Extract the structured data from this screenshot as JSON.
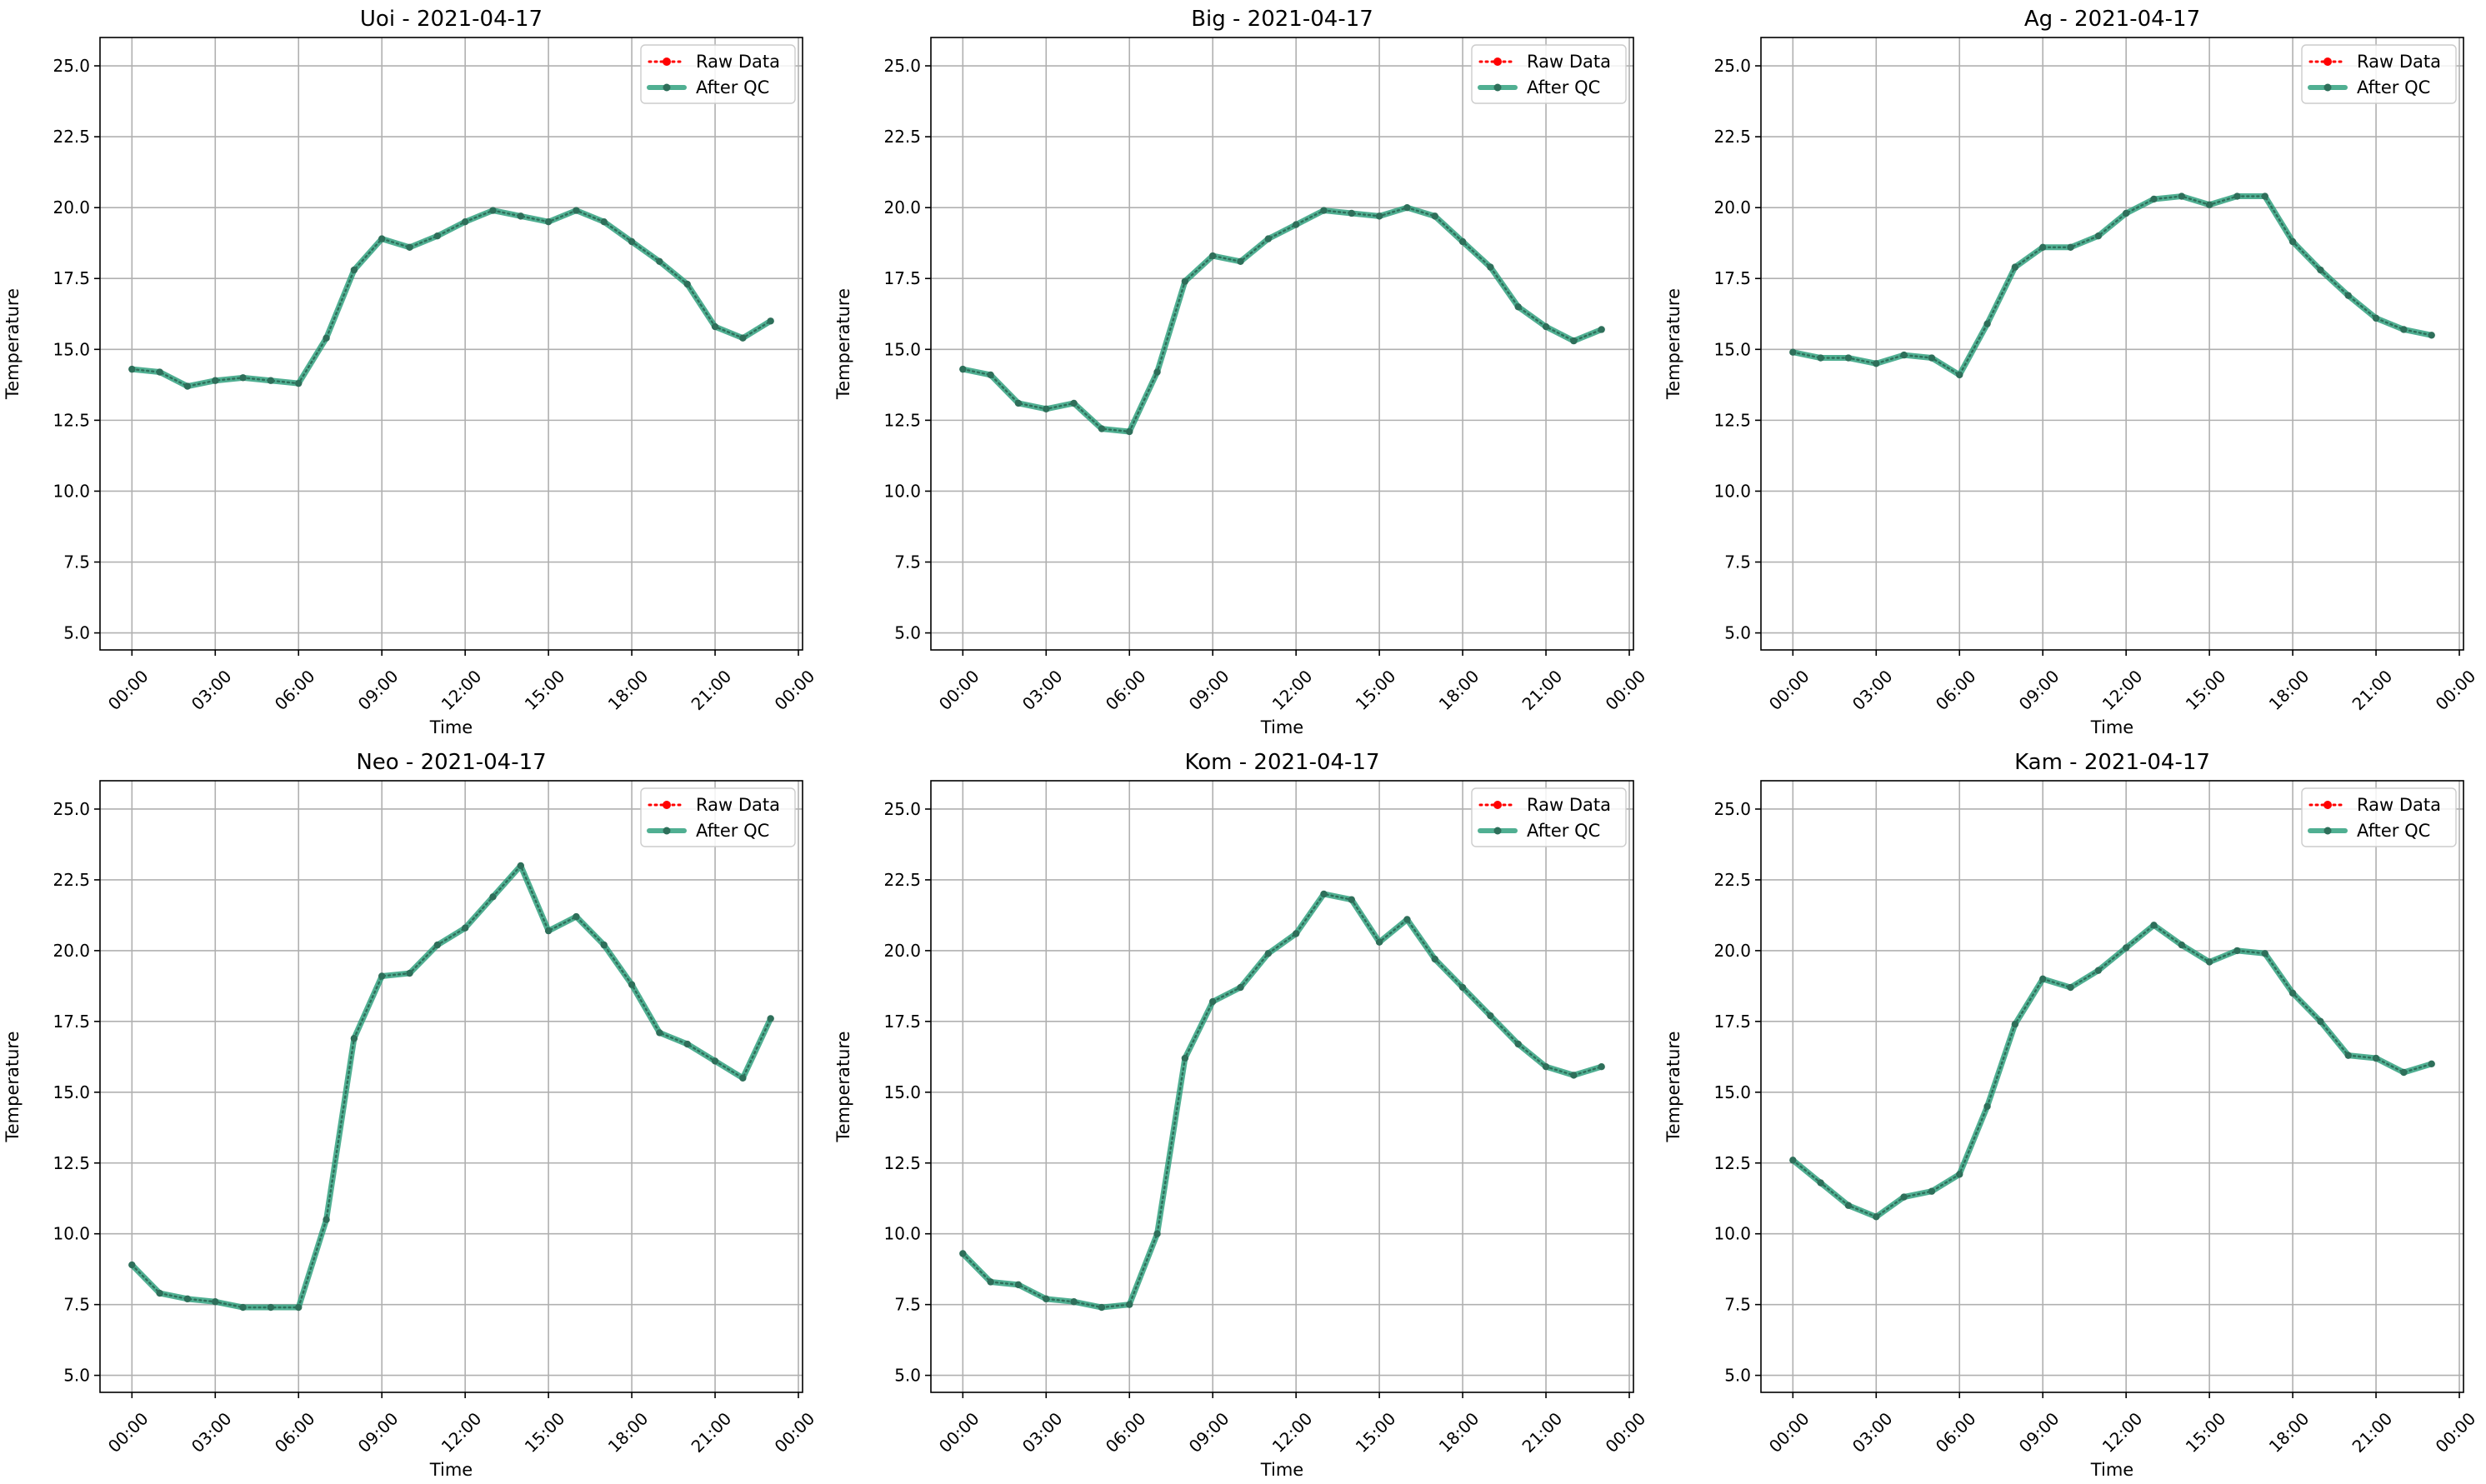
{
  "figure": {
    "background": "#ffffff"
  },
  "colors": {
    "raw": "#ff0000",
    "after_qc": "#2a9d7a",
    "after_qc_marker": "#2e6f5a",
    "grid": "#b0b0b0",
    "axes": "#000000"
  },
  "legend": {
    "raw_label": "Raw Data",
    "qc_label": "After QC",
    "placement": "upper-right"
  },
  "chart_data": [
    {
      "type": "line",
      "title": "Uoi - 2021-04-17",
      "xlabel": "Time",
      "ylabel": "Temperature",
      "x": [
        "00:00",
        "01:00",
        "02:00",
        "03:00",
        "04:00",
        "05:00",
        "06:00",
        "07:00",
        "08:00",
        "09:00",
        "10:00",
        "11:00",
        "12:00",
        "13:00",
        "14:00",
        "15:00",
        "16:00",
        "17:00",
        "18:00",
        "19:00",
        "20:00",
        "21:00",
        "22:00",
        "23:00"
      ],
      "xticks": [
        "00:00",
        "03:00",
        "06:00",
        "09:00",
        "12:00",
        "15:00",
        "18:00",
        "21:00",
        "00:00"
      ],
      "ylim": [
        4.4,
        26.0
      ],
      "yticks": [
        "5.0",
        "7.5",
        "10.0",
        "12.5",
        "15.0",
        "17.5",
        "20.0",
        "22.5",
        "25.0"
      ],
      "grid": true,
      "legend": "top-right",
      "series": [
        {
          "name": "Raw Data",
          "values": [
            14.3,
            14.2,
            13.7,
            13.9,
            14.0,
            13.9,
            13.8,
            15.4,
            17.8,
            18.9,
            18.6,
            19.0,
            19.5,
            19.9,
            19.7,
            19.5,
            19.9,
            19.5,
            18.8,
            18.1,
            17.3,
            15.8,
            15.4,
            16.0
          ]
        },
        {
          "name": "After QC",
          "values": [
            14.3,
            14.2,
            13.7,
            13.9,
            14.0,
            13.9,
            13.8,
            15.4,
            17.8,
            18.9,
            18.6,
            19.0,
            19.5,
            19.9,
            19.7,
            19.5,
            19.9,
            19.5,
            18.8,
            18.1,
            17.3,
            15.8,
            15.4,
            16.0
          ]
        }
      ]
    },
    {
      "type": "line",
      "title": "Big - 2021-04-17",
      "xlabel": "Time",
      "ylabel": "Temperature",
      "x": [
        "00:00",
        "01:00",
        "02:00",
        "03:00",
        "04:00",
        "05:00",
        "06:00",
        "07:00",
        "08:00",
        "09:00",
        "10:00",
        "11:00",
        "12:00",
        "13:00",
        "14:00",
        "15:00",
        "16:00",
        "17:00",
        "18:00",
        "19:00",
        "20:00",
        "21:00",
        "22:00",
        "23:00"
      ],
      "xticks": [
        "00:00",
        "03:00",
        "06:00",
        "09:00",
        "12:00",
        "15:00",
        "18:00",
        "21:00",
        "00:00"
      ],
      "ylim": [
        4.4,
        26.0
      ],
      "yticks": [
        "5.0",
        "7.5",
        "10.0",
        "12.5",
        "15.0",
        "17.5",
        "20.0",
        "22.5",
        "25.0"
      ],
      "grid": true,
      "legend": "top-right",
      "series": [
        {
          "name": "Raw Data",
          "values": [
            14.3,
            14.1,
            13.1,
            12.9,
            13.1,
            12.2,
            12.1,
            14.2,
            17.4,
            18.3,
            18.1,
            18.9,
            19.4,
            19.9,
            19.8,
            19.7,
            20.0,
            19.7,
            18.8,
            17.9,
            16.5,
            15.8,
            15.3,
            15.7
          ]
        },
        {
          "name": "After QC",
          "values": [
            14.3,
            14.1,
            13.1,
            12.9,
            13.1,
            12.2,
            12.1,
            14.2,
            17.4,
            18.3,
            18.1,
            18.9,
            19.4,
            19.9,
            19.8,
            19.7,
            20.0,
            19.7,
            18.8,
            17.9,
            16.5,
            15.8,
            15.3,
            15.7
          ]
        }
      ]
    },
    {
      "type": "line",
      "title": "Ag - 2021-04-17",
      "xlabel": "Time",
      "ylabel": "Temperature",
      "x": [
        "00:00",
        "01:00",
        "02:00",
        "03:00",
        "04:00",
        "05:00",
        "06:00",
        "07:00",
        "08:00",
        "09:00",
        "10:00",
        "11:00",
        "12:00",
        "13:00",
        "14:00",
        "15:00",
        "16:00",
        "17:00",
        "18:00",
        "19:00",
        "20:00",
        "21:00",
        "22:00",
        "23:00"
      ],
      "xticks": [
        "00:00",
        "03:00",
        "06:00",
        "09:00",
        "12:00",
        "15:00",
        "18:00",
        "21:00",
        "00:00"
      ],
      "ylim": [
        4.4,
        26.0
      ],
      "yticks": [
        "5.0",
        "7.5",
        "10.0",
        "12.5",
        "15.0",
        "17.5",
        "20.0",
        "22.5",
        "25.0"
      ],
      "grid": true,
      "legend": "top-right",
      "series": [
        {
          "name": "Raw Data",
          "values": [
            14.9,
            14.7,
            14.7,
            14.5,
            14.8,
            14.7,
            14.1,
            15.9,
            17.9,
            18.6,
            18.6,
            19.0,
            19.8,
            20.3,
            20.4,
            20.1,
            20.4,
            20.4,
            18.8,
            17.8,
            16.9,
            16.1,
            15.7,
            15.5
          ]
        },
        {
          "name": "After QC",
          "values": [
            14.9,
            14.7,
            14.7,
            14.5,
            14.8,
            14.7,
            14.1,
            15.9,
            17.9,
            18.6,
            18.6,
            19.0,
            19.8,
            20.3,
            20.4,
            20.1,
            20.4,
            20.4,
            18.8,
            17.8,
            16.9,
            16.1,
            15.7,
            15.5
          ]
        }
      ]
    },
    {
      "type": "line",
      "title": "Neo - 2021-04-17",
      "xlabel": "Time",
      "ylabel": "Temperature",
      "x": [
        "00:00",
        "01:00",
        "02:00",
        "03:00",
        "04:00",
        "05:00",
        "06:00",
        "07:00",
        "08:00",
        "09:00",
        "10:00",
        "11:00",
        "12:00",
        "13:00",
        "14:00",
        "15:00",
        "16:00",
        "17:00",
        "18:00",
        "19:00",
        "20:00",
        "21:00",
        "22:00",
        "23:00"
      ],
      "xticks": [
        "00:00",
        "03:00",
        "06:00",
        "09:00",
        "12:00",
        "15:00",
        "18:00",
        "21:00",
        "00:00"
      ],
      "ylim": [
        4.4,
        26.0
      ],
      "yticks": [
        "5.0",
        "7.5",
        "10.0",
        "12.5",
        "15.0",
        "17.5",
        "20.0",
        "22.5",
        "25.0"
      ],
      "grid": true,
      "legend": "top-right",
      "series": [
        {
          "name": "Raw Data",
          "values": [
            8.9,
            7.9,
            7.7,
            7.6,
            7.4,
            7.4,
            7.4,
            10.5,
            16.9,
            19.1,
            19.2,
            20.2,
            20.8,
            21.9,
            23.0,
            20.7,
            21.2,
            20.2,
            18.8,
            17.1,
            16.7,
            16.1,
            15.5,
            17.6
          ]
        },
        {
          "name": "After QC",
          "values": [
            8.9,
            7.9,
            7.7,
            7.6,
            7.4,
            7.4,
            7.4,
            10.5,
            16.9,
            19.1,
            19.2,
            20.2,
            20.8,
            21.9,
            23.0,
            20.7,
            21.2,
            20.2,
            18.8,
            17.1,
            16.7,
            16.1,
            15.5,
            17.6
          ]
        }
      ]
    },
    {
      "type": "line",
      "title": "Kom - 2021-04-17",
      "xlabel": "Time",
      "ylabel": "Temperature",
      "x": [
        "00:00",
        "01:00",
        "02:00",
        "03:00",
        "04:00",
        "05:00",
        "06:00",
        "07:00",
        "08:00",
        "09:00",
        "10:00",
        "11:00",
        "12:00",
        "13:00",
        "14:00",
        "15:00",
        "16:00",
        "17:00",
        "18:00",
        "19:00",
        "20:00",
        "21:00",
        "22:00",
        "23:00"
      ],
      "xticks": [
        "00:00",
        "03:00",
        "06:00",
        "09:00",
        "12:00",
        "15:00",
        "18:00",
        "21:00",
        "00:00"
      ],
      "ylim": [
        4.4,
        26.0
      ],
      "yticks": [
        "5.0",
        "7.5",
        "10.0",
        "12.5",
        "15.0",
        "17.5",
        "20.0",
        "22.5",
        "25.0"
      ],
      "grid": true,
      "legend": "top-right",
      "series": [
        {
          "name": "Raw Data",
          "values": [
            9.3,
            8.3,
            8.2,
            7.7,
            7.6,
            7.4,
            7.5,
            10.0,
            16.2,
            18.2,
            18.7,
            19.9,
            20.6,
            22.0,
            21.8,
            20.3,
            21.1,
            19.7,
            18.7,
            17.7,
            16.7,
            15.9,
            15.6,
            15.9
          ]
        },
        {
          "name": "After QC",
          "values": [
            9.3,
            8.3,
            8.2,
            7.7,
            7.6,
            7.4,
            7.5,
            10.0,
            16.2,
            18.2,
            18.7,
            19.9,
            20.6,
            22.0,
            21.8,
            20.3,
            21.1,
            19.7,
            18.7,
            17.7,
            16.7,
            15.9,
            15.6,
            15.9
          ]
        }
      ]
    },
    {
      "type": "line",
      "title": "Kam - 2021-04-17",
      "xlabel": "Time",
      "ylabel": "Temperature",
      "x": [
        "00:00",
        "01:00",
        "02:00",
        "03:00",
        "04:00",
        "05:00",
        "06:00",
        "07:00",
        "08:00",
        "09:00",
        "10:00",
        "11:00",
        "12:00",
        "13:00",
        "14:00",
        "15:00",
        "16:00",
        "17:00",
        "18:00",
        "19:00",
        "20:00",
        "21:00",
        "22:00",
        "23:00"
      ],
      "xticks": [
        "00:00",
        "03:00",
        "06:00",
        "09:00",
        "12:00",
        "15:00",
        "18:00",
        "21:00",
        "00:00"
      ],
      "ylim": [
        4.4,
        26.0
      ],
      "yticks": [
        "5.0",
        "7.5",
        "10.0",
        "12.5",
        "15.0",
        "17.5",
        "20.0",
        "22.5",
        "25.0"
      ],
      "grid": true,
      "legend": "top-right",
      "series": [
        {
          "name": "Raw Data",
          "values": [
            12.6,
            11.8,
            11.0,
            10.6,
            11.3,
            11.5,
            12.1,
            14.5,
            17.4,
            19.0,
            18.7,
            19.3,
            20.1,
            20.9,
            20.2,
            19.6,
            20.0,
            19.9,
            18.5,
            17.5,
            16.3,
            16.2,
            15.7,
            16.0
          ]
        },
        {
          "name": "After QC",
          "values": [
            12.6,
            11.8,
            11.0,
            10.6,
            11.3,
            11.5,
            12.1,
            14.5,
            17.4,
            19.0,
            18.7,
            19.3,
            20.1,
            20.9,
            20.2,
            19.6,
            20.0,
            19.9,
            18.5,
            17.5,
            16.3,
            16.2,
            15.7,
            16.0
          ]
        }
      ]
    }
  ]
}
